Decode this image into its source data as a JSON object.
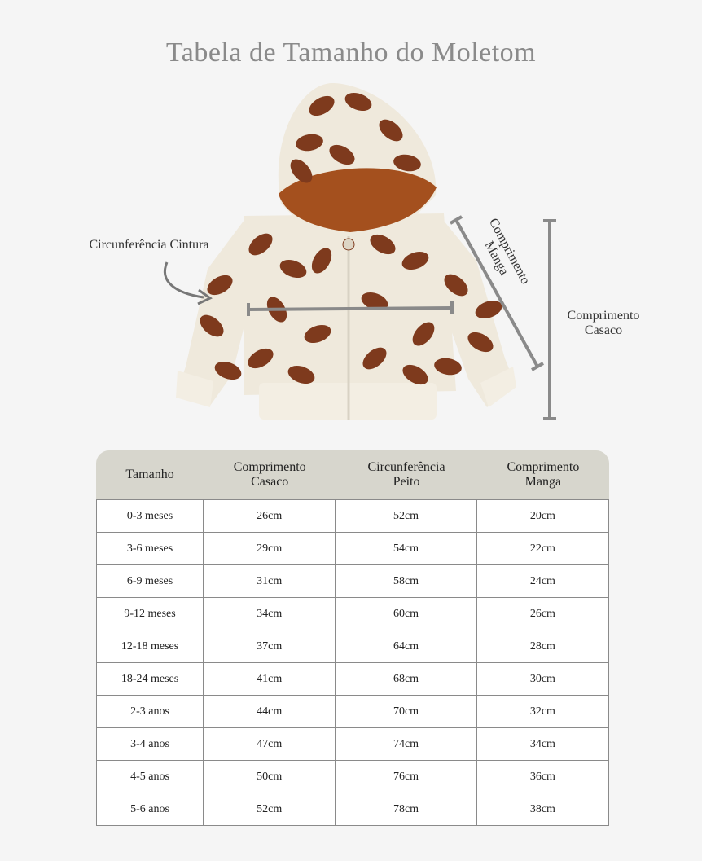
{
  "title": "Tabela de Tamanho do Moletom",
  "diagram": {
    "waist_label": "Circunferência Cintura",
    "sleeve_label": [
      "Comprimento",
      "Manga"
    ],
    "length_label": [
      "Comprimento",
      "Casaco"
    ],
    "garment_colors": {
      "fabric": "#efe9dc",
      "leaf": "#7e3a1d",
      "hood_lining": "#a4501e"
    },
    "measure_color": "#8a8a8a"
  },
  "table": {
    "headers": [
      [
        "Tamanho"
      ],
      [
        "Comprimento",
        "Casaco"
      ],
      [
        "Circunferência",
        "Peito"
      ],
      [
        "Comprimento",
        "Manga"
      ]
    ],
    "header_color": "#d7d6cd",
    "rows": [
      [
        "0-3 meses",
        "26cm",
        "52cm",
        "20cm"
      ],
      [
        "3-6 meses",
        "29cm",
        "54cm",
        "22cm"
      ],
      [
        "6-9 meses",
        "31cm",
        "58cm",
        "24cm"
      ],
      [
        "9-12 meses",
        "34cm",
        "60cm",
        "26cm"
      ],
      [
        "12-18 meses",
        "37cm",
        "64cm",
        "28cm"
      ],
      [
        "18-24 meses",
        "41cm",
        "68cm",
        "30cm"
      ],
      [
        "2-3 anos",
        "44cm",
        "70cm",
        "32cm"
      ],
      [
        "3-4 anos",
        "47cm",
        "74cm",
        "34cm"
      ],
      [
        "4-5 anos",
        "50cm",
        "76cm",
        "36cm"
      ],
      [
        "5-6 anos",
        "52cm",
        "78cm",
        "38cm"
      ]
    ]
  }
}
